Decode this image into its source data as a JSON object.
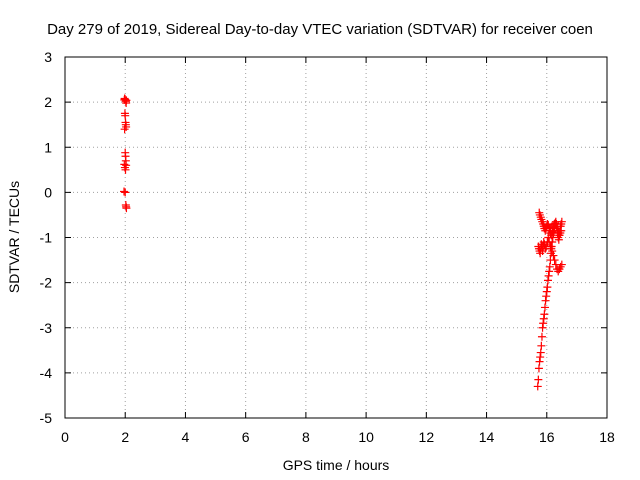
{
  "chart_data": {
    "type": "scatter",
    "title": "Day 279 of 2019, Sidereal Day-to-day VTEC variation (SDTVAR) for receiver coen",
    "xlabel": "GPS time / hours",
    "ylabel": "SDTVAR / TECUs",
    "xlim": [
      0,
      18
    ],
    "ylim": [
      -5,
      3
    ],
    "xticks": [
      0,
      2,
      4,
      6,
      8,
      10,
      12,
      14,
      16,
      18
    ],
    "yticks": [
      -5,
      -4,
      -3,
      -2,
      -1,
      0,
      1,
      2,
      3
    ],
    "grid": true,
    "marker": "+",
    "color": "#ff0000",
    "series": [
      {
        "name": "SDTVAR",
        "x": [
          1.97,
          1.98,
          2.0,
          2.02,
          2.03,
          2.04,
          1.99,
          2.0,
          2.01,
          2.02,
          2.03,
          1.98,
          2.0,
          2.01,
          2.02,
          1.97,
          1.99,
          2.01,
          2.03,
          1.96,
          2.0,
          2.02,
          2.03,
          2.04,
          15.7,
          15.72,
          15.74,
          15.76,
          15.78,
          15.8,
          15.82,
          15.84,
          15.86,
          15.88,
          15.9,
          15.92,
          15.94,
          15.96,
          15.98,
          16.0,
          16.02,
          16.04,
          16.06,
          16.08,
          16.1,
          16.12,
          16.14,
          16.16,
          16.18,
          16.2,
          16.22,
          16.24,
          16.26,
          16.28,
          16.3,
          16.32,
          16.34,
          16.36,
          16.38,
          16.4,
          16.42,
          16.44,
          16.46,
          16.48,
          16.5,
          15.75,
          15.77,
          15.8,
          15.82,
          15.85,
          15.88,
          15.9,
          15.92,
          15.95,
          15.97,
          16.0,
          16.02,
          16.05,
          16.08,
          16.1,
          16.12,
          16.15,
          16.18,
          16.2,
          16.22,
          16.25,
          16.28,
          16.3,
          16.33,
          16.35,
          16.38,
          16.4,
          16.42,
          16.45,
          16.48,
          15.72,
          15.74,
          15.76,
          15.78,
          15.8,
          15.82,
          15.84,
          15.86,
          15.88,
          15.9,
          15.92,
          15.95,
          15.98,
          16.02,
          16.05,
          16.08,
          16.12,
          16.15,
          16.18,
          16.22,
          16.26,
          16.3,
          16.34,
          16.38,
          16.42,
          16.46,
          16.5
        ],
        "y": [
          2.05,
          2.08,
          2.06,
          2.02,
          1.98,
          2.04,
          1.75,
          1.7,
          1.55,
          1.5,
          1.45,
          1.4,
          0.88,
          0.8,
          0.7,
          0.62,
          0.55,
          0.5,
          0.6,
          0.02,
          0.0,
          -0.28,
          -0.32,
          -0.35,
          -4.3,
          -4.15,
          -3.9,
          -3.75,
          -3.65,
          -3.55,
          -3.4,
          -3.2,
          -3.0,
          -2.9,
          -2.8,
          -2.7,
          -2.55,
          -2.4,
          -2.3,
          -2.2,
          -2.1,
          -1.95,
          -1.85,
          -1.75,
          -1.65,
          -1.5,
          -1.35,
          -1.2,
          -1.1,
          -1.0,
          -0.9,
          -0.85,
          -0.75,
          -0.7,
          -0.65,
          -0.7,
          -0.8,
          -0.9,
          -1.0,
          -1.05,
          -0.95,
          -0.85,
          -0.75,
          -0.7,
          -0.65,
          -0.45,
          -0.5,
          -0.55,
          -0.6,
          -0.65,
          -0.7,
          -0.75,
          -0.8,
          -0.85,
          -0.8,
          -0.75,
          -0.7,
          -0.72,
          -0.78,
          -0.85,
          -0.9,
          -0.95,
          -0.88,
          -0.8,
          -0.75,
          -0.7,
          -0.68,
          -0.7,
          -0.75,
          -0.8,
          -0.85,
          -0.9,
          -0.95,
          -0.9,
          -0.85,
          -1.2,
          -1.25,
          -1.3,
          -1.35,
          -1.25,
          -1.15,
          -1.2,
          -1.3,
          -1.2,
          -1.1,
          -1.15,
          -1.25,
          -1.2,
          -1.1,
          -1.0,
          -1.1,
          -1.2,
          -1.25,
          -1.3,
          -1.4,
          -1.5,
          -1.6,
          -1.7,
          -1.75,
          -1.7,
          -1.65,
          -1.6
        ]
      }
    ]
  }
}
